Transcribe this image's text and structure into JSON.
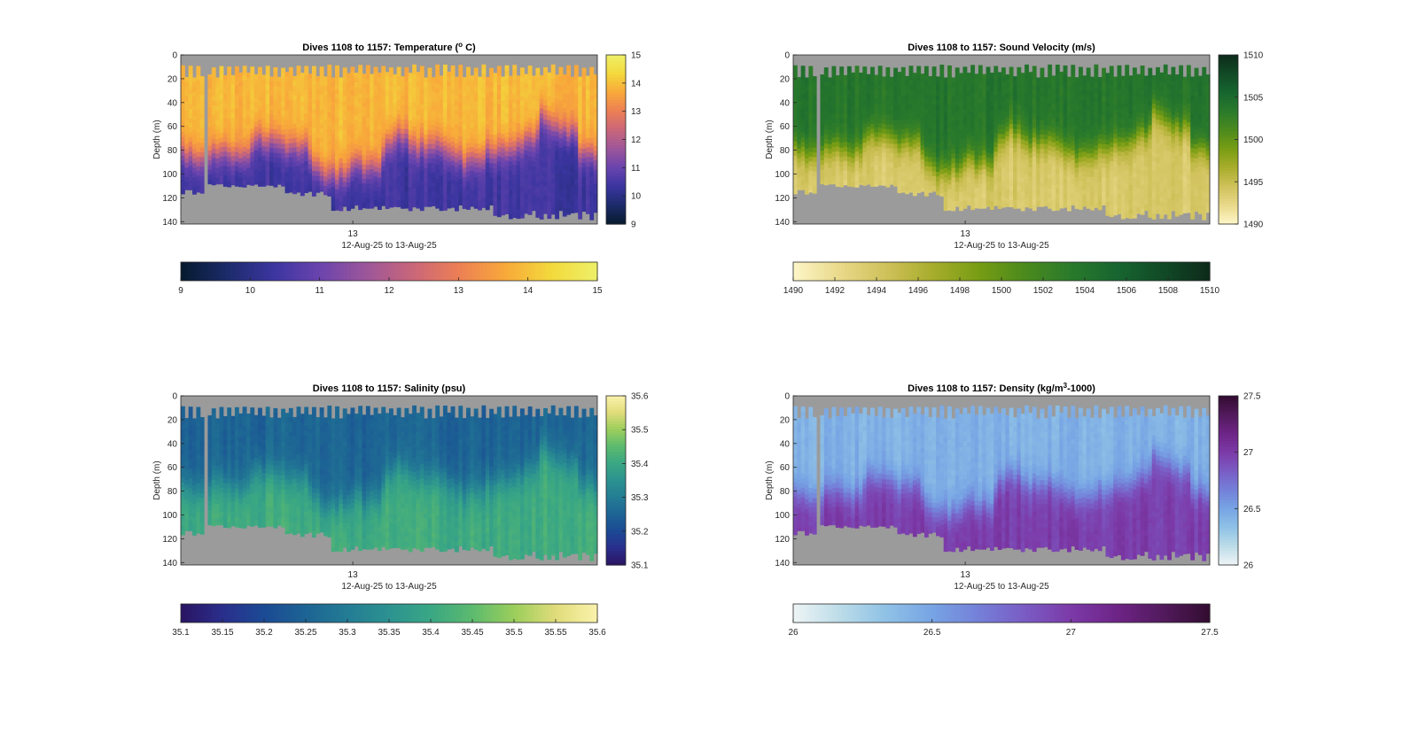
{
  "chart_data": [
    {
      "type": "heatmap",
      "id": "temperature",
      "title_prefix": "Dives 1108 to 1157: Temperature (",
      "title_sup": "o",
      "title_suffix": " C)",
      "xlabel": "12-Aug-25 to 13-Aug-25",
      "ylabel": "Depth (m)",
      "x_tick_labels": [
        "13"
      ],
      "yticks": [
        0,
        20,
        40,
        60,
        80,
        100,
        120,
        140
      ],
      "ylim": [
        0,
        142
      ],
      "dives": [
        1108,
        1157
      ],
      "colorbar_ticks": [
        "15",
        "14",
        "13",
        "12",
        "11",
        "10",
        "9"
      ],
      "hbar_ticks": [
        "9",
        "10",
        "11",
        "12",
        "13",
        "14",
        "15"
      ],
      "clim": [
        9,
        15
      ],
      "colormap": [
        "#061a2e",
        "#1c2b6a",
        "#3b35a0",
        "#6a44ae",
        "#9c569a",
        "#c9667a",
        "#ec7f55",
        "#f8a83a",
        "#f3d93c",
        "#eef069"
      ],
      "surface_value": 13.9,
      "deep_value": 10.4,
      "thermocline_depth_m": 78,
      "thermocline_width_m": 14
    },
    {
      "type": "heatmap",
      "id": "sound-velocity",
      "title_prefix": "Dives 1108 to 1157: Sound Velocity (m/s)",
      "title_sup": "",
      "title_suffix": "",
      "xlabel": "12-Aug-25 to 13-Aug-25",
      "ylabel": "Depth (m)",
      "x_tick_labels": [
        "13"
      ],
      "yticks": [
        0,
        20,
        40,
        60,
        80,
        100,
        120,
        140
      ],
      "ylim": [
        0,
        142
      ],
      "dives": [
        1108,
        1157
      ],
      "colorbar_ticks": [
        "1510",
        "1505",
        "1500",
        "1495",
        "1490"
      ],
      "hbar_ticks": [
        "1490",
        "1492",
        "1494",
        "1496",
        "1498",
        "1500",
        "1502",
        "1504",
        "1506",
        "1508",
        "1510"
      ],
      "clim": [
        1490,
        1510
      ],
      "colormap": [
        "#fdf6c8",
        "#e9d98a",
        "#cfc15a",
        "#a8ad2c",
        "#789d14",
        "#4b8a1d",
        "#2a7a2c",
        "#176530",
        "#114a26",
        "#0d2a1a"
      ],
      "surface_value": 1503.8,
      "deep_value": 1493.6,
      "thermocline_depth_m": 74,
      "thermocline_width_m": 14
    },
    {
      "type": "heatmap",
      "id": "salinity",
      "title_prefix": "Dives 1108 to 1157: Salinity (psu)",
      "title_sup": "",
      "title_suffix": "",
      "xlabel": "12-Aug-25 to 13-Aug-25",
      "ylabel": "Depth (m)",
      "x_tick_labels": [
        "13"
      ],
      "yticks": [
        0,
        20,
        40,
        60,
        80,
        100,
        120,
        140
      ],
      "ylim": [
        0,
        142
      ],
      "dives": [
        1108,
        1157
      ],
      "colorbar_ticks": [
        "35.6",
        "35.5",
        "35.4",
        "35.3",
        "35.2",
        "35.1"
      ],
      "hbar_ticks": [
        "35.1",
        "35.15",
        "35.2",
        "35.25",
        "35.3",
        "35.35",
        "35.4",
        "35.45",
        "35.5",
        "35.55",
        "35.6"
      ],
      "clim": [
        35.1,
        35.6
      ],
      "colormap": [
        "#2a1462",
        "#2a2e8c",
        "#1b4a94",
        "#1d6494",
        "#237c94",
        "#2c9290",
        "#3aa784",
        "#5cba6e",
        "#9bce5c",
        "#e0dc7a",
        "#fbf2ac"
      ],
      "surface_value": 35.25,
      "deep_value": 35.41,
      "thermocline_depth_m": 70,
      "thermocline_width_m": 16
    },
    {
      "type": "heatmap",
      "id": "density",
      "title_prefix": "Dives 1108 to 1157: Density (kg/m",
      "title_sup": "3",
      "title_suffix": "-1000)",
      "xlabel": "12-Aug-25 to 13-Aug-25",
      "ylabel": "Depth (m)",
      "x_tick_labels": [
        "13"
      ],
      "yticks": [
        0,
        20,
        40,
        60,
        80,
        100,
        120,
        140
      ],
      "ylim": [
        0,
        142
      ],
      "dives": [
        1108,
        1157
      ],
      "colorbar_ticks": [
        "27.5",
        "27",
        "26.5",
        "26"
      ],
      "hbar_ticks": [
        "26",
        "26.5",
        "27",
        "27.5"
      ],
      "clim": [
        26,
        27.5
      ],
      "colormap": [
        "#eef4f6",
        "#bcdce8",
        "#8fc2e6",
        "#77a4e4",
        "#7480d8",
        "#7a5cc4",
        "#7c3aa8",
        "#6d2486",
        "#521a5c",
        "#320c30"
      ],
      "surface_value": 26.42,
      "deep_value": 26.98,
      "thermocline_depth_m": 76,
      "thermocline_width_m": 14
    }
  ],
  "colors": {
    "missing_data": "#9b9b9b",
    "axis": "#262626",
    "text": "#262626"
  }
}
